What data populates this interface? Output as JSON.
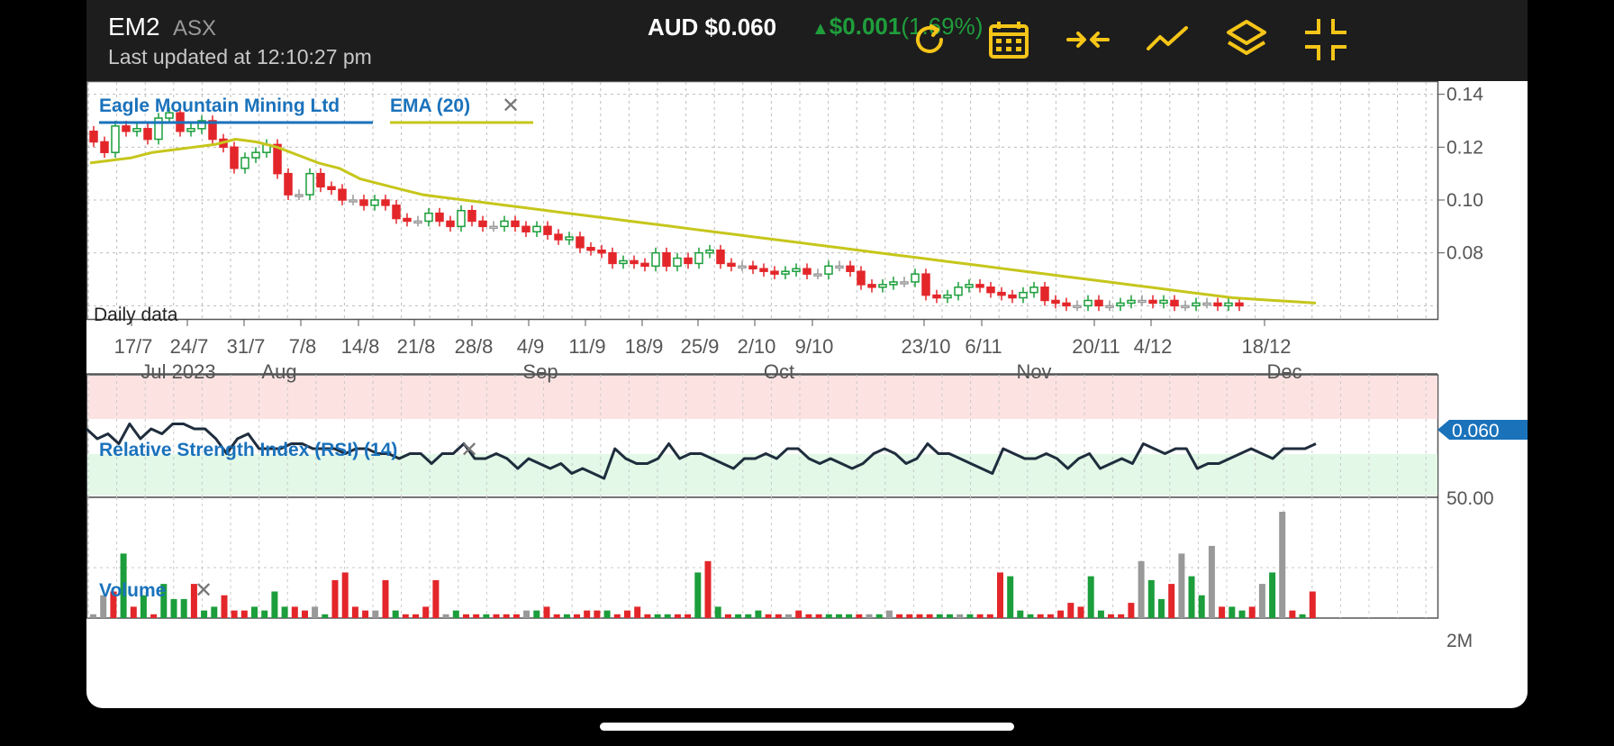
{
  "header": {
    "ticker": "EM2",
    "exchange": "ASX",
    "last_updated": "Last updated at 12:10:27 pm",
    "price": "AUD $0.060",
    "change_arrow": "▲",
    "change_value": "$0.001",
    "change_percent": "(1.69%)",
    "accent_color": "#f5c518"
  },
  "toolbar": {
    "icons": [
      "refresh-icon",
      "calendar-icon",
      "compress-icon",
      "line-chart-icon",
      "layers-icon",
      "exit-fullscreen-icon"
    ]
  },
  "price_panel": {
    "legend_main": "Eagle Mountain Mining Ltd",
    "legend_ema": "EMA (20)",
    "legend_close": "✕",
    "interval_note": "Daily data",
    "current_price_tag": "0.060"
  },
  "rsi_panel": {
    "title": "Relative Strength Index (RSI) (14)",
    "close": "✕",
    "y_tick": "50.00"
  },
  "volume_panel": {
    "title": "Volume",
    "close": "✕",
    "y_tick": "2M"
  },
  "chart_data": [
    {
      "type": "candlestick",
      "title": "Eagle Mountain Mining Ltd",
      "ylim": [
        0.055,
        0.145
      ],
      "y_ticks": [
        0.14,
        0.12,
        0.1,
        0.08
      ],
      "y_tick_labels": [
        "0.14",
        "0.12",
        "0.10",
        "0.08"
      ],
      "x_tick_labels": [
        "17/7",
        "24/7",
        "31/7",
        "7/8",
        "14/8",
        "21/8",
        "28/8",
        "4/9",
        "11/9",
        "18/9",
        "25/9",
        "2/10",
        "9/10",
        "23/10",
        "6/11",
        "20/11",
        "4/12",
        "18/12"
      ],
      "month_labels": [
        "Jul 2023",
        "Aug",
        "Sep",
        "Oct",
        "Nov",
        "Dec"
      ],
      "series": [
        {
          "name": "Eagle Mountain Mining Ltd",
          "close": [
            0.122,
            0.118,
            0.128,
            0.126,
            0.127,
            0.123,
            0.131,
            0.133,
            0.126,
            0.127,
            0.13,
            0.123,
            0.12,
            0.112,
            0.116,
            0.118,
            0.121,
            0.11,
            0.102,
            0.102,
            0.11,
            0.105,
            0.104,
            0.1,
            0.1,
            0.098,
            0.1,
            0.098,
            0.093,
            0.092,
            0.092,
            0.095,
            0.092,
            0.09,
            0.096,
            0.092,
            0.09,
            0.09,
            0.092,
            0.09,
            0.088,
            0.09,
            0.087,
            0.085,
            0.086,
            0.082,
            0.081,
            0.08,
            0.076,
            0.077,
            0.076,
            0.075,
            0.08,
            0.075,
            0.078,
            0.076,
            0.08,
            0.081,
            0.076,
            0.075,
            0.075,
            0.074,
            0.073,
            0.072,
            0.073,
            0.074,
            0.072,
            0.072,
            0.075,
            0.075,
            0.073,
            0.068,
            0.067,
            0.068,
            0.069,
            0.069,
            0.072,
            0.064,
            0.063,
            0.064,
            0.067,
            0.068,
            0.067,
            0.065,
            0.064,
            0.063,
            0.065,
            0.067,
            0.062,
            0.061,
            0.06,
            0.06,
            0.062,
            0.06,
            0.06,
            0.061,
            0.062,
            0.062,
            0.061,
            0.062,
            0.06,
            0.06,
            0.061,
            0.061,
            0.06,
            0.061,
            0.06
          ]
        },
        {
          "name": "EMA (20)",
          "values": [
            0.114,
            0.115,
            0.116,
            0.118,
            0.119,
            0.12,
            0.121,
            0.123,
            0.122,
            0.12,
            0.117,
            0.114,
            0.112,
            0.108,
            0.106,
            0.104,
            0.102,
            0.101,
            0.1,
            0.099,
            0.098,
            0.097,
            0.096,
            0.095,
            0.094,
            0.093,
            0.092,
            0.091,
            0.09,
            0.089,
            0.088,
            0.087,
            0.086,
            0.085,
            0.084,
            0.083,
            0.082,
            0.081,
            0.08,
            0.079,
            0.078,
            0.077,
            0.076,
            0.075,
            0.074,
            0.073,
            0.072,
            0.071,
            0.07,
            0.069,
            0.068,
            0.067,
            0.066,
            0.065,
            0.064,
            0.063,
            0.0625,
            0.062,
            0.0615,
            0.061
          ]
        }
      ]
    },
    {
      "type": "line",
      "title": "Relative Strength Index (RSI) (14)",
      "y_tick_labels": [
        "50.00"
      ],
      "series": [
        {
          "name": "Relative Strength Index (RSI) (14)",
          "values": [
            52,
            50,
            51,
            49,
            53,
            50,
            52,
            51,
            53,
            53,
            52,
            52,
            50,
            47,
            50,
            51,
            48,
            48,
            48,
            49,
            49,
            48,
            48,
            48,
            47,
            48,
            48,
            47,
            47,
            46,
            47,
            47,
            45,
            47,
            47,
            49,
            46,
            46,
            47,
            46,
            44,
            46,
            45,
            44,
            45,
            43,
            44,
            43,
            42,
            48,
            46,
            45,
            45,
            46,
            49,
            46,
            47,
            47,
            46,
            45,
            44,
            46,
            46,
            47,
            46,
            48,
            48,
            46,
            45,
            46,
            45,
            44,
            45,
            47,
            48,
            47,
            45,
            46,
            49,
            47,
            47,
            46,
            45,
            44,
            43,
            48,
            47,
            46,
            46,
            47,
            46,
            44,
            46,
            47,
            44,
            45,
            46,
            45,
            49,
            48,
            47,
            48,
            48,
            44,
            45,
            45,
            46,
            47,
            48,
            47,
            46,
            48,
            48,
            48,
            49
          ]
        }
      ]
    },
    {
      "type": "bar",
      "title": "Volume",
      "y_tick_labels": [
        "2M"
      ],
      "series": [
        {
          "name": "Volume",
          "values": [
            0.1,
            0.6,
            0.7,
            1.7,
            0.3,
            0.6,
            0.1,
            0.9,
            0.5,
            0.5,
            0.9,
            0.2,
            0.3,
            0.6,
            0.2,
            0.2,
            0.3,
            0.2,
            0.7,
            0.3,
            0.3,
            0.2,
            0.3,
            0.1,
            1.0,
            1.2,
            0.3,
            0.2,
            0.2,
            1.0,
            0.2,
            0.1,
            0.1,
            0.3,
            1.0,
            0.1,
            0.2,
            0.1,
            0.1,
            0.1,
            0.1,
            0.1,
            0.1,
            0.2,
            0.2,
            0.3,
            0.1,
            0.1,
            0.1,
            0.2,
            0.2,
            0.2,
            0.1,
            0.2,
            0.3,
            0.1,
            0.1,
            0.1,
            0.1,
            0.1,
            1.2,
            1.5,
            0.3,
            0.1,
            0.1,
            0.1,
            0.2,
            0.1,
            0.1,
            0.1,
            0.2,
            0.1,
            0.1,
            0.1,
            0.1,
            0.1,
            0.1,
            0.1,
            0.1,
            0.2,
            0.1,
            0.1,
            0.1,
            0.1,
            0.1,
            0.1,
            0.1,
            0.1,
            0.1,
            0.1,
            1.2,
            1.1,
            0.2,
            0.1,
            0.1,
            0.1,
            0.2,
            0.4,
            0.3,
            1.1,
            0.2,
            0.1,
            0.1,
            0.4,
            1.5,
            1.0,
            0.5,
            0.9,
            1.7,
            1.1,
            0.6,
            1.9,
            0.3,
            0.3,
            0.2,
            0.3,
            0.9,
            1.2,
            2.8,
            0.2,
            0.1,
            0.7
          ]
        }
      ]
    }
  ],
  "colors": {
    "up": "#1b9e3b",
    "down": "#e3262a",
    "flat": "#999999",
    "ema": "#c6c61c",
    "rsi": "#1f2d3d",
    "link": "#1a72bb"
  }
}
